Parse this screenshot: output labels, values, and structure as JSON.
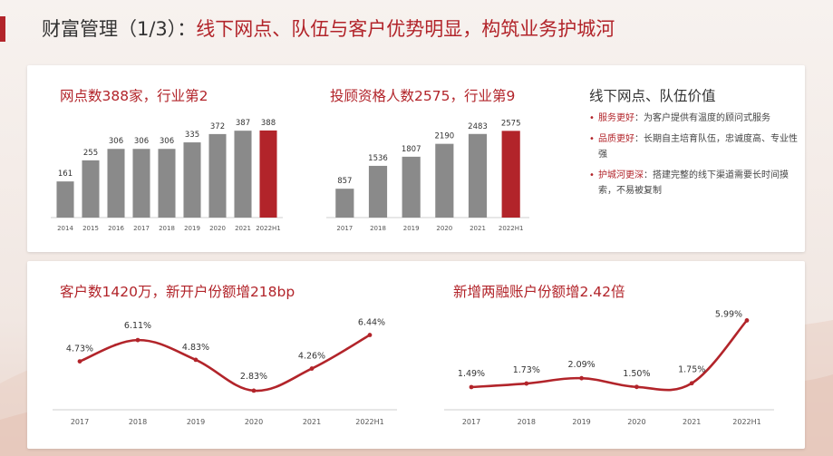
{
  "header": {
    "title_main": "财富管理（1/3）：",
    "title_rest": "线下网点、队伍与客户优势明显，构筑业务护城河"
  },
  "colors": {
    "accent": "#b2242a",
    "bar_gray": "#8a8a8a",
    "text_dark": "#333333"
  },
  "value_panel": {
    "title": "线下网点、队伍价值",
    "items": [
      {
        "key": "服务更好",
        "text": "为客户提供有温度的顾问式服务"
      },
      {
        "key": "品质更好",
        "text": "长期自主培育队伍，忠诚度高、专业性强"
      },
      {
        "key": "护城河更深",
        "text": "搭建完整的线下渠道需要长时间摸索，不易被复制"
      }
    ]
  },
  "chart_data": [
    {
      "type": "bar",
      "title": "网点数388家，行业第2",
      "categories": [
        "2014",
        "2015",
        "2016",
        "2017",
        "2018",
        "2019",
        "2020",
        "2021",
        "2022H1"
      ],
      "values": [
        161,
        255,
        306,
        306,
        306,
        335,
        372,
        387,
        388
      ],
      "labels": [
        "161",
        "255",
        "306",
        "306",
        "306",
        "335",
        "372",
        "387",
        "388"
      ],
      "highlight_index": 8,
      "ylim": [
        0,
        420
      ]
    },
    {
      "type": "bar",
      "title": "投顾资格人数2575，行业第9",
      "categories": [
        "2017",
        "2018",
        "2019",
        "2020",
        "2021",
        "2022H1"
      ],
      "values": [
        857,
        1536,
        1807,
        2190,
        2483,
        2575
      ],
      "labels": [
        "857",
        "1536",
        "1807",
        "2190",
        "2483",
        "2575"
      ],
      "highlight_index": 5,
      "ylim": [
        0,
        2800
      ]
    },
    {
      "type": "line",
      "title": "客户数1420万，新开户份额增218bp",
      "categories": [
        "2017",
        "2018",
        "2019",
        "2020",
        "2021",
        "2022H1"
      ],
      "values": [
        4.73,
        6.11,
        4.83,
        2.83,
        4.26,
        6.44
      ],
      "labels": [
        "4.73%",
        "6.11%",
        "4.83%",
        "2.83%",
        "4.26%",
        "6.44%"
      ],
      "ylim": [
        2.0,
        7.0
      ]
    },
    {
      "type": "line",
      "title": "新增两融账户份额增2.42倍",
      "categories": [
        "2017",
        "2018",
        "2019",
        "2020",
        "2021",
        "2022H1"
      ],
      "values": [
        1.49,
        1.73,
        2.09,
        1.5,
        1.75,
        5.99
      ],
      "labels": [
        "1.49%",
        "1.73%",
        "2.09%",
        "1.50%",
        "1.75%",
        "5.99%"
      ],
      "ylim": [
        1.0,
        6.2
      ]
    }
  ]
}
